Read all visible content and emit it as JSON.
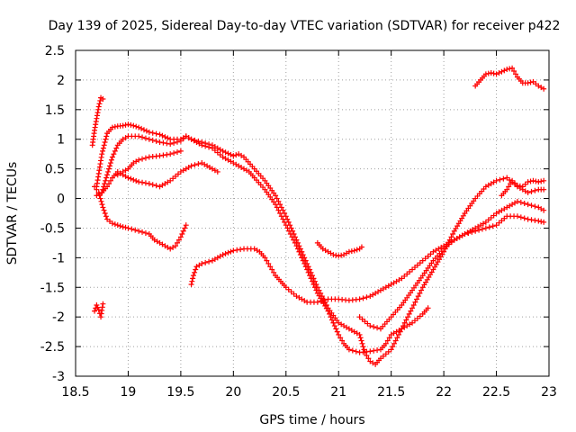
{
  "chart_data": {
    "type": "scatter",
    "title": "Day 139 of 2025, Sidereal Day-to-day VTEC variation (SDTVAR) for receiver p422",
    "xlabel": "GPS time / hours",
    "ylabel": "SDTVAR / TECUs",
    "xlim": [
      18.5,
      23.0
    ],
    "ylim": [
      -3.0,
      2.5
    ],
    "xticks": [
      18.5,
      19,
      19.5,
      20,
      20.5,
      21,
      21.5,
      22,
      22.5,
      23
    ],
    "xtick_labels": [
      "18.5",
      "19",
      "19.5",
      "20",
      "20.5",
      "21",
      "21.5",
      "22",
      "22.5",
      "23"
    ],
    "yticks": [
      -3,
      -2.5,
      -2,
      -1.5,
      -1,
      -0.5,
      0,
      0.5,
      1,
      1.5,
      2,
      2.5
    ],
    "ytick_labels": [
      "-3",
      "-2.5",
      "-2",
      "-1.5",
      "-1",
      "-0.5",
      "0",
      "0.5",
      "1",
      "1.5",
      "2",
      "2.5"
    ],
    "grid": true,
    "marker": "+",
    "color": "#ff0000",
    "series": [
      {
        "name": "s1",
        "x": [
          18.68,
          18.7,
          18.72,
          18.74,
          18.76
        ],
        "y": [
          -1.9,
          -1.8,
          -1.88,
          -2.0,
          -1.78
        ]
      },
      {
        "name": "s2",
        "x": [
          18.66,
          18.68,
          18.7,
          18.72,
          18.74,
          18.76
        ],
        "y": [
          0.9,
          1.15,
          1.35,
          1.55,
          1.7,
          1.68
        ]
      },
      {
        "name": "s3",
        "x": [
          18.7,
          18.75,
          18.8,
          18.85,
          18.9,
          18.95,
          19.0,
          19.05,
          19.1,
          19.2,
          19.3,
          19.4,
          19.5,
          19.55,
          19.6,
          19.65,
          19.7,
          19.8,
          19.9,
          20.0,
          20.1,
          20.15,
          20.2,
          20.3,
          20.4,
          20.5,
          20.6,
          20.7,
          20.8,
          20.9,
          21.0,
          21.05,
          21.1,
          21.2,
          21.3,
          21.4,
          21.45,
          21.5,
          21.6,
          21.7,
          21.8,
          21.85
        ],
        "y": [
          0.2,
          0.75,
          1.1,
          1.2,
          1.22,
          1.23,
          1.25,
          1.23,
          1.2,
          1.12,
          1.08,
          1.0,
          1.0,
          1.05,
          1.0,
          0.95,
          0.9,
          0.85,
          0.7,
          0.6,
          0.5,
          0.45,
          0.35,
          0.15,
          -0.1,
          -0.45,
          -0.8,
          -1.2,
          -1.6,
          -1.9,
          -2.3,
          -2.45,
          -2.55,
          -2.6,
          -2.58,
          -2.55,
          -2.45,
          -2.3,
          -2.2,
          -2.1,
          -1.95,
          -1.85
        ]
      },
      {
        "name": "s4",
        "x": [
          18.68,
          18.72,
          18.76,
          18.8,
          18.85,
          18.9,
          18.95,
          19.0,
          19.1,
          19.2,
          19.25,
          19.3,
          19.4,
          19.45,
          19.5,
          19.55
        ],
        "y": [
          0.2,
          0.1,
          -0.15,
          -0.35,
          -0.42,
          -0.45,
          -0.48,
          -0.5,
          -0.55,
          -0.6,
          -0.7,
          -0.75,
          -0.85,
          -0.8,
          -0.65,
          -0.45
        ]
      },
      {
        "name": "s5",
        "x": [
          18.7,
          18.75,
          18.8,
          18.85,
          18.9,
          18.95,
          19.0,
          19.1,
          19.2,
          19.3,
          19.4,
          19.5,
          19.55,
          19.6,
          19.7,
          19.8,
          19.9,
          20.0,
          20.05,
          20.1,
          20.2,
          20.3,
          20.4,
          20.5,
          20.6,
          20.7,
          20.8,
          20.9,
          21.0,
          21.1,
          21.2,
          21.25,
          21.3,
          21.35,
          21.4,
          21.5,
          21.6,
          21.7,
          21.8,
          21.9,
          22.0,
          22.1,
          22.2,
          22.3,
          22.4,
          22.5,
          22.6,
          22.7,
          22.8,
          22.9,
          22.95
        ],
        "y": [
          0.05,
          0.1,
          0.4,
          0.7,
          0.9,
          1.0,
          1.05,
          1.05,
          1.0,
          0.95,
          0.92,
          0.97,
          1.05,
          1.0,
          0.95,
          0.9,
          0.8,
          0.72,
          0.75,
          0.7,
          0.5,
          0.3,
          0.05,
          -0.3,
          -0.7,
          -1.1,
          -1.5,
          -1.85,
          -2.1,
          -2.2,
          -2.3,
          -2.6,
          -2.75,
          -2.8,
          -2.7,
          -2.55,
          -2.2,
          -1.85,
          -1.5,
          -1.2,
          -0.9,
          -0.55,
          -0.25,
          0.0,
          0.2,
          0.3,
          0.35,
          0.2,
          0.1,
          0.15,
          0.15
        ]
      },
      {
        "name": "s6",
        "x": [
          18.75,
          18.8,
          18.85,
          18.9,
          18.95,
          19.0,
          19.1,
          19.2,
          19.3,
          19.4,
          19.5,
          19.55,
          19.6,
          19.7,
          19.8,
          19.85
        ],
        "y": [
          0.1,
          0.2,
          0.35,
          0.45,
          0.4,
          0.35,
          0.28,
          0.25,
          0.2,
          0.3,
          0.45,
          0.5,
          0.55,
          0.6,
          0.5,
          0.45
        ]
      },
      {
        "name": "s7",
        "x": [
          18.9,
          18.95,
          19.0,
          19.05,
          19.1,
          19.2,
          19.3,
          19.4,
          19.5
        ],
        "y": [
          0.4,
          0.45,
          0.5,
          0.6,
          0.65,
          0.7,
          0.72,
          0.75,
          0.8
        ]
      },
      {
        "name": "s8",
        "x": [
          19.6,
          19.62,
          19.65,
          19.7,
          19.8,
          19.9,
          20.0,
          20.1,
          20.2,
          20.25,
          20.3,
          20.35,
          20.4,
          20.45,
          20.5,
          20.6,
          20.7,
          20.8,
          20.9,
          21.0,
          21.1,
          21.2,
          21.3,
          21.4,
          21.5,
          21.6,
          21.7,
          21.8,
          21.9,
          22.0,
          22.1,
          22.2,
          22.3,
          22.4,
          22.5,
          22.6,
          22.7,
          22.8,
          22.9,
          22.95
        ],
        "y": [
          -1.45,
          -1.3,
          -1.15,
          -1.1,
          -1.05,
          -0.95,
          -0.88,
          -0.85,
          -0.85,
          -0.9,
          -1.0,
          -1.15,
          -1.3,
          -1.4,
          -1.5,
          -1.65,
          -1.75,
          -1.75,
          -1.7,
          -1.7,
          -1.72,
          -1.7,
          -1.65,
          -1.55,
          -1.45,
          -1.35,
          -1.2,
          -1.05,
          -0.9,
          -0.8,
          -0.7,
          -0.6,
          -0.55,
          -0.5,
          -0.45,
          -0.3,
          -0.3,
          -0.35,
          -0.38,
          -0.4
        ]
      },
      {
        "name": "s9",
        "x": [
          20.8,
          20.85,
          20.9,
          20.95,
          21.0,
          21.05,
          21.1,
          21.15,
          21.2,
          21.22
        ],
        "y": [
          -0.75,
          -0.85,
          -0.9,
          -0.95,
          -0.97,
          -0.95,
          -0.9,
          -0.88,
          -0.85,
          -0.82
        ]
      },
      {
        "name": "s10",
        "x": [
          21.2,
          21.3,
          21.4,
          21.5,
          21.6,
          21.7,
          21.8,
          21.9,
          22.0,
          22.1,
          22.2,
          22.3,
          22.4,
          22.5,
          22.6,
          22.7,
          22.8,
          22.9,
          22.95
        ],
        "y": [
          -2.0,
          -2.15,
          -2.2,
          -2.0,
          -1.8,
          -1.55,
          -1.3,
          -1.05,
          -0.85,
          -0.7,
          -0.6,
          -0.5,
          -0.4,
          -0.25,
          -0.15,
          -0.05,
          -0.1,
          -0.15,
          -0.2
        ]
      },
      {
        "name": "s11",
        "x": [
          22.3,
          22.35,
          22.4,
          22.45,
          22.5,
          22.6,
          22.65,
          22.7,
          22.75,
          22.8,
          22.85,
          22.9,
          22.95
        ],
        "y": [
          1.9,
          2.0,
          2.1,
          2.12,
          2.1,
          2.18,
          2.2,
          2.05,
          1.95,
          1.95,
          1.97,
          1.9,
          1.85
        ]
      },
      {
        "name": "s12",
        "x": [
          22.55,
          22.6,
          22.65,
          22.7,
          22.75,
          22.8,
          22.85,
          22.9,
          22.95
        ],
        "y": [
          0.05,
          0.15,
          0.3,
          0.22,
          0.2,
          0.28,
          0.3,
          0.28,
          0.3
        ]
      }
    ]
  }
}
